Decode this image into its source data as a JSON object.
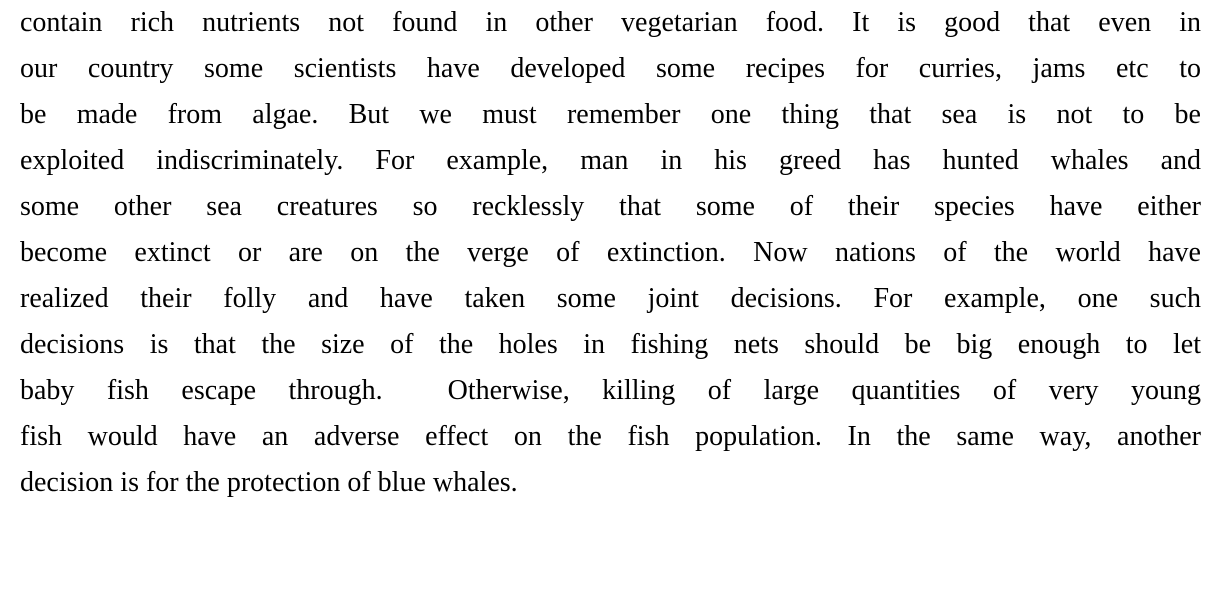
{
  "paragraph": {
    "lines": [
      "contain rich nutrients not found in other vegetarian food. It is good that even in",
      "our country some scientists have developed some recipes for curries, jams etc to",
      "be made from algae. But we must remember one thing that sea is not to be",
      "exploited indiscriminately. For example, man in his greed has hunted whales and",
      "some other sea creatures so recklessly that some of their species have either",
      "become extinct or are on the verge of extinction. Now nations of the world have",
      "realized their folly and have taken some joint decisions. For example, one such",
      "decisions is that the size of the holes in fishing nets should be big enough to let",
      "baby fish escape through.  Otherwise, killing of large quantities of very young",
      "fish would have an adverse effect on the fish population. In the same way, another",
      "decision is for the protection of blue whales."
    ]
  }
}
